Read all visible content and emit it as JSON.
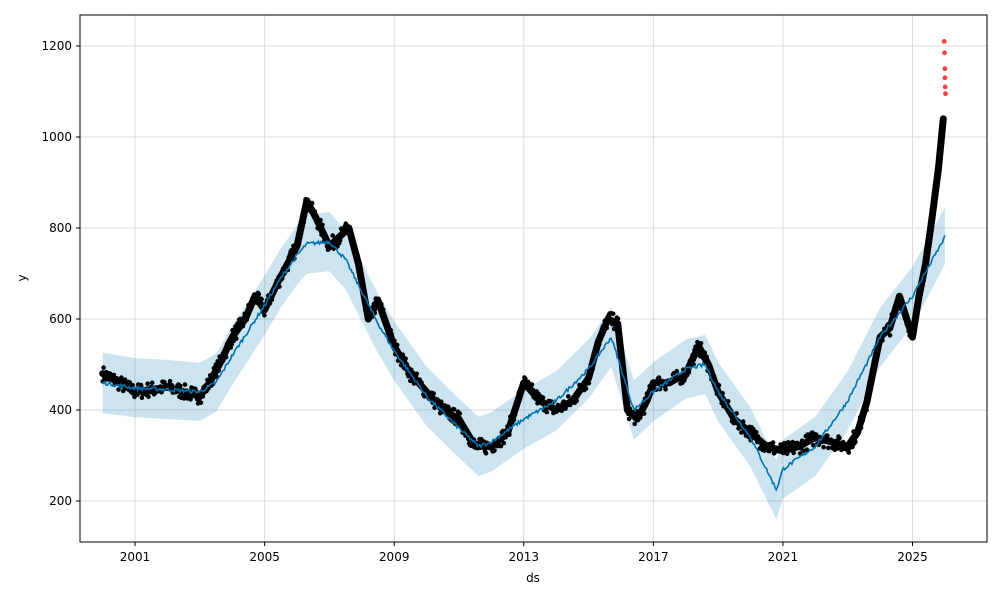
{
  "chart_data": {
    "type": "line",
    "xlabel": "ds",
    "ylabel": "y",
    "xlim": [
      1999.3,
      2027.3
    ],
    "ylim": [
      110,
      1268
    ],
    "grid": true,
    "x_ticks": [
      2001,
      2005,
      2009,
      2013,
      2017,
      2021,
      2025
    ],
    "x_tick_labels": [
      "2001",
      "2005",
      "2009",
      "2013",
      "2017",
      "2021",
      "2025"
    ],
    "y_ticks": [
      200,
      400,
      600,
      800,
      1000,
      1200
    ],
    "y_tick_labels": [
      "200",
      "400",
      "600",
      "800",
      "1000",
      "1200"
    ],
    "colors": {
      "forecast_line": "#0072B2",
      "interval_fill": "#0072B2",
      "observed_points": "#000000",
      "outlier_points": "#ff0000",
      "grid": "#dddddd"
    },
    "series": [
      {
        "role": "forecast",
        "x": [
          2000.0,
          2001.0,
          2002.0,
          2003.0,
          2003.5,
          2004.0,
          2005.0,
          2005.5,
          2006.0,
          2006.3,
          2007.0,
          2007.5,
          2008.0,
          2008.5,
          2009.0,
          2010.0,
          2011.0,
          2011.6,
          2012.0,
          2013.0,
          2014.0,
          2015.0,
          2015.7,
          2016.4,
          2017.0,
          2018.0,
          2018.6,
          2019.0,
          2020.0,
          2020.8,
          2021.0,
          2022.0,
          2023.0,
          2024.0,
          2025.0,
          2026.0
        ],
        "yhat": [
          460,
          448,
          445,
          440,
          460,
          520,
          630,
          690,
          740,
          765,
          770,
          730,
          660,
          590,
          530,
          430,
          360,
          320,
          330,
          380,
          420,
          490,
          560,
          400,
          440,
          490,
          500,
          440,
          340,
          225,
          270,
          320,
          420,
          560,
          650,
          780
        ],
        "yhat_lower": [
          393,
          384,
          380,
          376,
          396,
          455,
          565,
          625,
          675,
          700,
          705,
          665,
          595,
          525,
          465,
          365,
          295,
          255,
          265,
          315,
          355,
          425,
          495,
          335,
          375,
          425,
          435,
          375,
          275,
          160,
          205,
          255,
          355,
          495,
          585,
          720
        ],
        "yhat_upper": [
          526,
          514,
          510,
          504,
          524,
          585,
          695,
          755,
          805,
          830,
          835,
          795,
          725,
          655,
          595,
          495,
          425,
          385,
          395,
          445,
          485,
          555,
          625,
          465,
          505,
          555,
          565,
          505,
          405,
          290,
          335,
          385,
          485,
          625,
          715,
          845
        ]
      },
      {
        "role": "observed",
        "x": [
          2000.0,
          2000.5,
          2001.0,
          2001.5,
          2002.0,
          2002.5,
          2003.0,
          2003.3,
          2003.6,
          2004.0,
          2004.4,
          2004.7,
          2005.0,
          2005.4,
          2005.7,
          2006.0,
          2006.3,
          2006.6,
          2007.0,
          2007.3,
          2007.6,
          2007.9,
          2008.2,
          2008.5,
          2009.0,
          2009.5,
          2010.0,
          2010.5,
          2011.0,
          2011.5,
          2012.0,
          2012.5,
          2013.0,
          2013.5,
          2014.0,
          2014.5,
          2015.0,
          2015.3,
          2015.6,
          2015.9,
          2016.2,
          2016.5,
          2016.8,
          2017.0,
          2017.5,
          2018.0,
          2018.4,
          2018.7,
          2019.0,
          2019.5,
          2020.0,
          2020.5,
          2021.0,
          2021.5,
          2022.0,
          2022.5,
          2023.0,
          2023.3,
          2023.6,
          2024.0,
          2024.3,
          2024.6,
          2025.0,
          2025.2,
          2025.4,
          2025.6,
          2025.8,
          2025.95
        ],
        "values": [
          480,
          460,
          440,
          445,
          450,
          440,
          430,
          460,
          500,
          560,
          600,
          650,
          620,
          680,
          720,
          760,
          860,
          820,
          760,
          780,
          800,
          720,
          600,
          640,
          540,
          480,
          440,
          400,
          380,
          320,
          320,
          350,
          460,
          420,
          400,
          420,
          470,
          550,
          600,
          590,
          400,
          380,
          420,
          460,
          460,
          480,
          540,
          500,
          440,
          380,
          350,
          320,
          310,
          320,
          340,
          330,
          320,
          350,
          420,
          560,
          580,
          650,
          560,
          650,
          720,
          820,
          930,
          1040
        ]
      },
      {
        "role": "outliers",
        "x": [
          2025.98,
          2025.99,
          2026.0,
          2026.0,
          2026.01,
          2026.02
        ],
        "values": [
          1210,
          1185,
          1150,
          1130,
          1110,
          1095
        ]
      }
    ]
  }
}
